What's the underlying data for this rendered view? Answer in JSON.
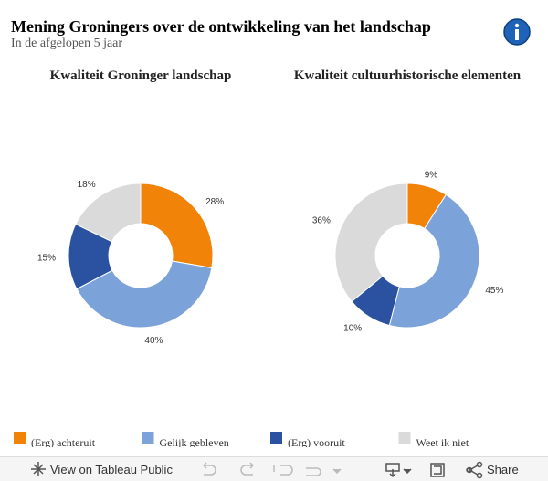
{
  "header": {
    "title": "Mening Groningers over de ontwikkeling van het landschap",
    "subtitle": "In de afgelopen 5 jaar"
  },
  "chart_data": [
    {
      "type": "donut",
      "title": "Kwaliteit Groninger landschap",
      "categories": [
        "(Erg) achteruit",
        "Gelijk gebleven",
        "(Erg) vooruit",
        "Weet ik niet"
      ],
      "values": [
        28,
        40,
        15,
        18
      ],
      "value_labels": [
        "28%",
        "40%",
        "15%",
        "18%"
      ],
      "colors": [
        "#f08308",
        "#7ca3d9",
        "#2a52a0",
        "#dadada"
      ]
    },
    {
      "type": "donut",
      "title": "Kwaliteit cultuurhistorische elementen",
      "categories": [
        "(Erg) achteruit",
        "Gelijk gebleven",
        "(Erg) vooruit",
        "Weet ik niet"
      ],
      "values": [
        9,
        45,
        10,
        36
      ],
      "value_labels": [
        "9%",
        "45%",
        "10%",
        "36%"
      ],
      "colors": [
        "#f08308",
        "#7ca3d9",
        "#2a52a0",
        "#dadada"
      ]
    }
  ],
  "toolbar": {
    "view": "View on Tableau Public",
    "share": "Share"
  }
}
